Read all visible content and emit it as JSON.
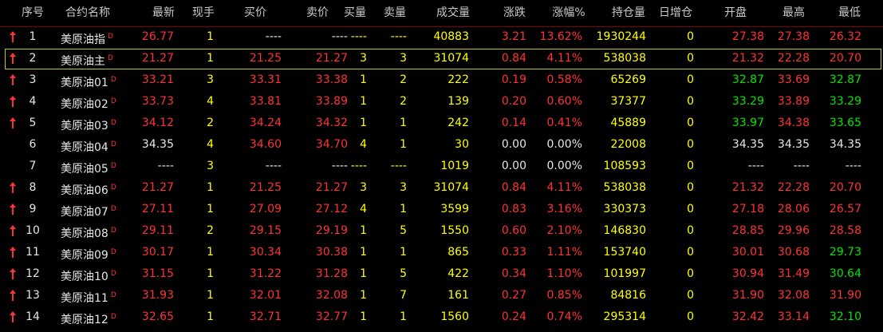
{
  "table": {
    "header": [
      "序号",
      "合约名称",
      "最新",
      "现手",
      "买价",
      "卖价",
      "买量",
      "卖量",
      "成交量",
      "涨跌",
      "涨幅%",
      "持仓量",
      "日增仓",
      "开盘",
      "最高",
      "最低"
    ],
    "name_marker": "D",
    "rows": [
      [
        "1",
        "美原油指",
        "26.77",
        "1",
        "----",
        "----",
        "----",
        "----",
        "40883",
        "3.21",
        "13.62%",
        "1930244",
        "0",
        "27.38",
        "27.38",
        "26.32"
      ],
      [
        "2",
        "美原油主",
        "21.27",
        "1",
        "21.25",
        "21.27",
        "3",
        "3",
        "31074",
        "0.84",
        "4.11%",
        "538038",
        "0",
        "21.32",
        "22.28",
        "20.70"
      ],
      [
        "3",
        "美原油01",
        "33.21",
        "3",
        "33.31",
        "33.38",
        "1",
        "2",
        "222",
        "0.19",
        "0.58%",
        "65269",
        "0",
        "32.87",
        "33.69",
        "32.87"
      ],
      [
        "4",
        "美原油02",
        "33.73",
        "4",
        "33.81",
        "33.89",
        "1",
        "2",
        "139",
        "0.20",
        "0.60%",
        "37377",
        "0",
        "33.29",
        "33.89",
        "33.29"
      ],
      [
        "5",
        "美原油03",
        "34.12",
        "2",
        "34.24",
        "34.32",
        "1",
        "1",
        "242",
        "0.14",
        "0.41%",
        "45889",
        "0",
        "33.97",
        "34.38",
        "33.65"
      ],
      [
        "6",
        "美原油04",
        "34.35",
        "4",
        "34.60",
        "34.70",
        "4",
        "1",
        "30",
        "0.00",
        "0.00%",
        "22008",
        "0",
        "34.35",
        "34.35",
        "34.35"
      ],
      [
        "7",
        "美原油05",
        "----",
        "3",
        "----",
        "----",
        "----",
        "----",
        "1019",
        "0.00",
        "0.00%",
        "108593",
        "0",
        "----",
        "----",
        "----"
      ],
      [
        "8",
        "美原油06",
        "21.27",
        "1",
        "21.25",
        "21.27",
        "3",
        "3",
        "31074",
        "0.84",
        "4.11%",
        "538038",
        "0",
        "21.32",
        "22.28",
        "20.70"
      ],
      [
        "9",
        "美原油07",
        "27.11",
        "1",
        "27.09",
        "27.12",
        "4",
        "1",
        "3599",
        "0.83",
        "3.16%",
        "330373",
        "0",
        "27.18",
        "28.06",
        "26.57"
      ],
      [
        "10",
        "美原油08",
        "29.11",
        "2",
        "29.15",
        "29.19",
        "1",
        "5",
        "1550",
        "0.60",
        "2.10%",
        "146830",
        "0",
        "28.85",
        "29.96",
        "28.58"
      ],
      [
        "11",
        "美原油09",
        "30.17",
        "1",
        "30.34",
        "30.38",
        "1",
        "1",
        "865",
        "0.33",
        "1.11%",
        "153740",
        "0",
        "30.01",
        "30.68",
        "29.73"
      ],
      [
        "12",
        "美原油10",
        "31.15",
        "1",
        "31.22",
        "31.28",
        "1",
        "5",
        "422",
        "0.34",
        "1.10%",
        "101997",
        "0",
        "30.94",
        "31.49",
        "30.64"
      ],
      [
        "13",
        "美原油11",
        "31.93",
        "1",
        "32.01",
        "32.08",
        "1",
        "7",
        "161",
        "0.27",
        "0.85%",
        "84816",
        "0",
        "31.90",
        "32.08",
        "31.90"
      ],
      [
        "14",
        "美原油12",
        "32.65",
        "1",
        "32.71",
        "32.77",
        "1",
        "1",
        "1560",
        "0.24",
        "0.74%",
        "295314",
        "0",
        "32.42",
        "33.14",
        "32.10"
      ]
    ],
    "selected_row": 1
  }
}
